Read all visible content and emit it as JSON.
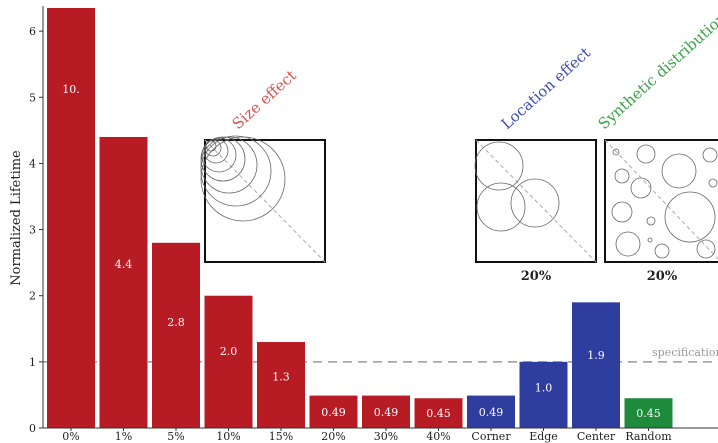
{
  "chart_data": {
    "type": "bar",
    "ylabel": "Normalized Lifetime",
    "ylim": [
      0,
      6.35
    ],
    "yticks": [
      0,
      1,
      2,
      3,
      4,
      5,
      6
    ],
    "grid": false,
    "categories": [
      "0%",
      "1%",
      "5%",
      "10%",
      "15%",
      "20%",
      "30%",
      "40%",
      "Corner",
      "Edge",
      "Center",
      "Random"
    ],
    "values": [
      10.0,
      4.4,
      2.8,
      2.0,
      1.3,
      0.49,
      0.49,
      0.45,
      0.49,
      1.0,
      1.9,
      0.45
    ],
    "data_labels": [
      "10.",
      "4.4",
      "2.8",
      "2.0",
      "1.3",
      "0.49",
      "0.49",
      "0.45",
      "0.49",
      "1.0",
      "1.9",
      "0.45"
    ],
    "bar_groups": [
      "size",
      "size",
      "size",
      "size",
      "size",
      "size",
      "size",
      "size",
      "location",
      "location",
      "location",
      "synthetic"
    ],
    "colors": {
      "size": "#b71c24",
      "location": "#2f3e9e",
      "synthetic": "#1e8a3c",
      "axis": "#333333",
      "reference": "#999999"
    },
    "reference_line": {
      "value": 1.0,
      "label": "specification"
    },
    "annotations": [
      {
        "text": "Size effect",
        "color": "#d9534f"
      },
      {
        "text": "Location effect",
        "color": "#3f4fb0"
      },
      {
        "text": "Synthetic distribution",
        "color": "#3aa348"
      }
    ],
    "insets": [
      {
        "id": "size",
        "caption": ""
      },
      {
        "id": "location",
        "caption": "20%"
      },
      {
        "id": "synthetic",
        "caption": "20%"
      }
    ]
  }
}
